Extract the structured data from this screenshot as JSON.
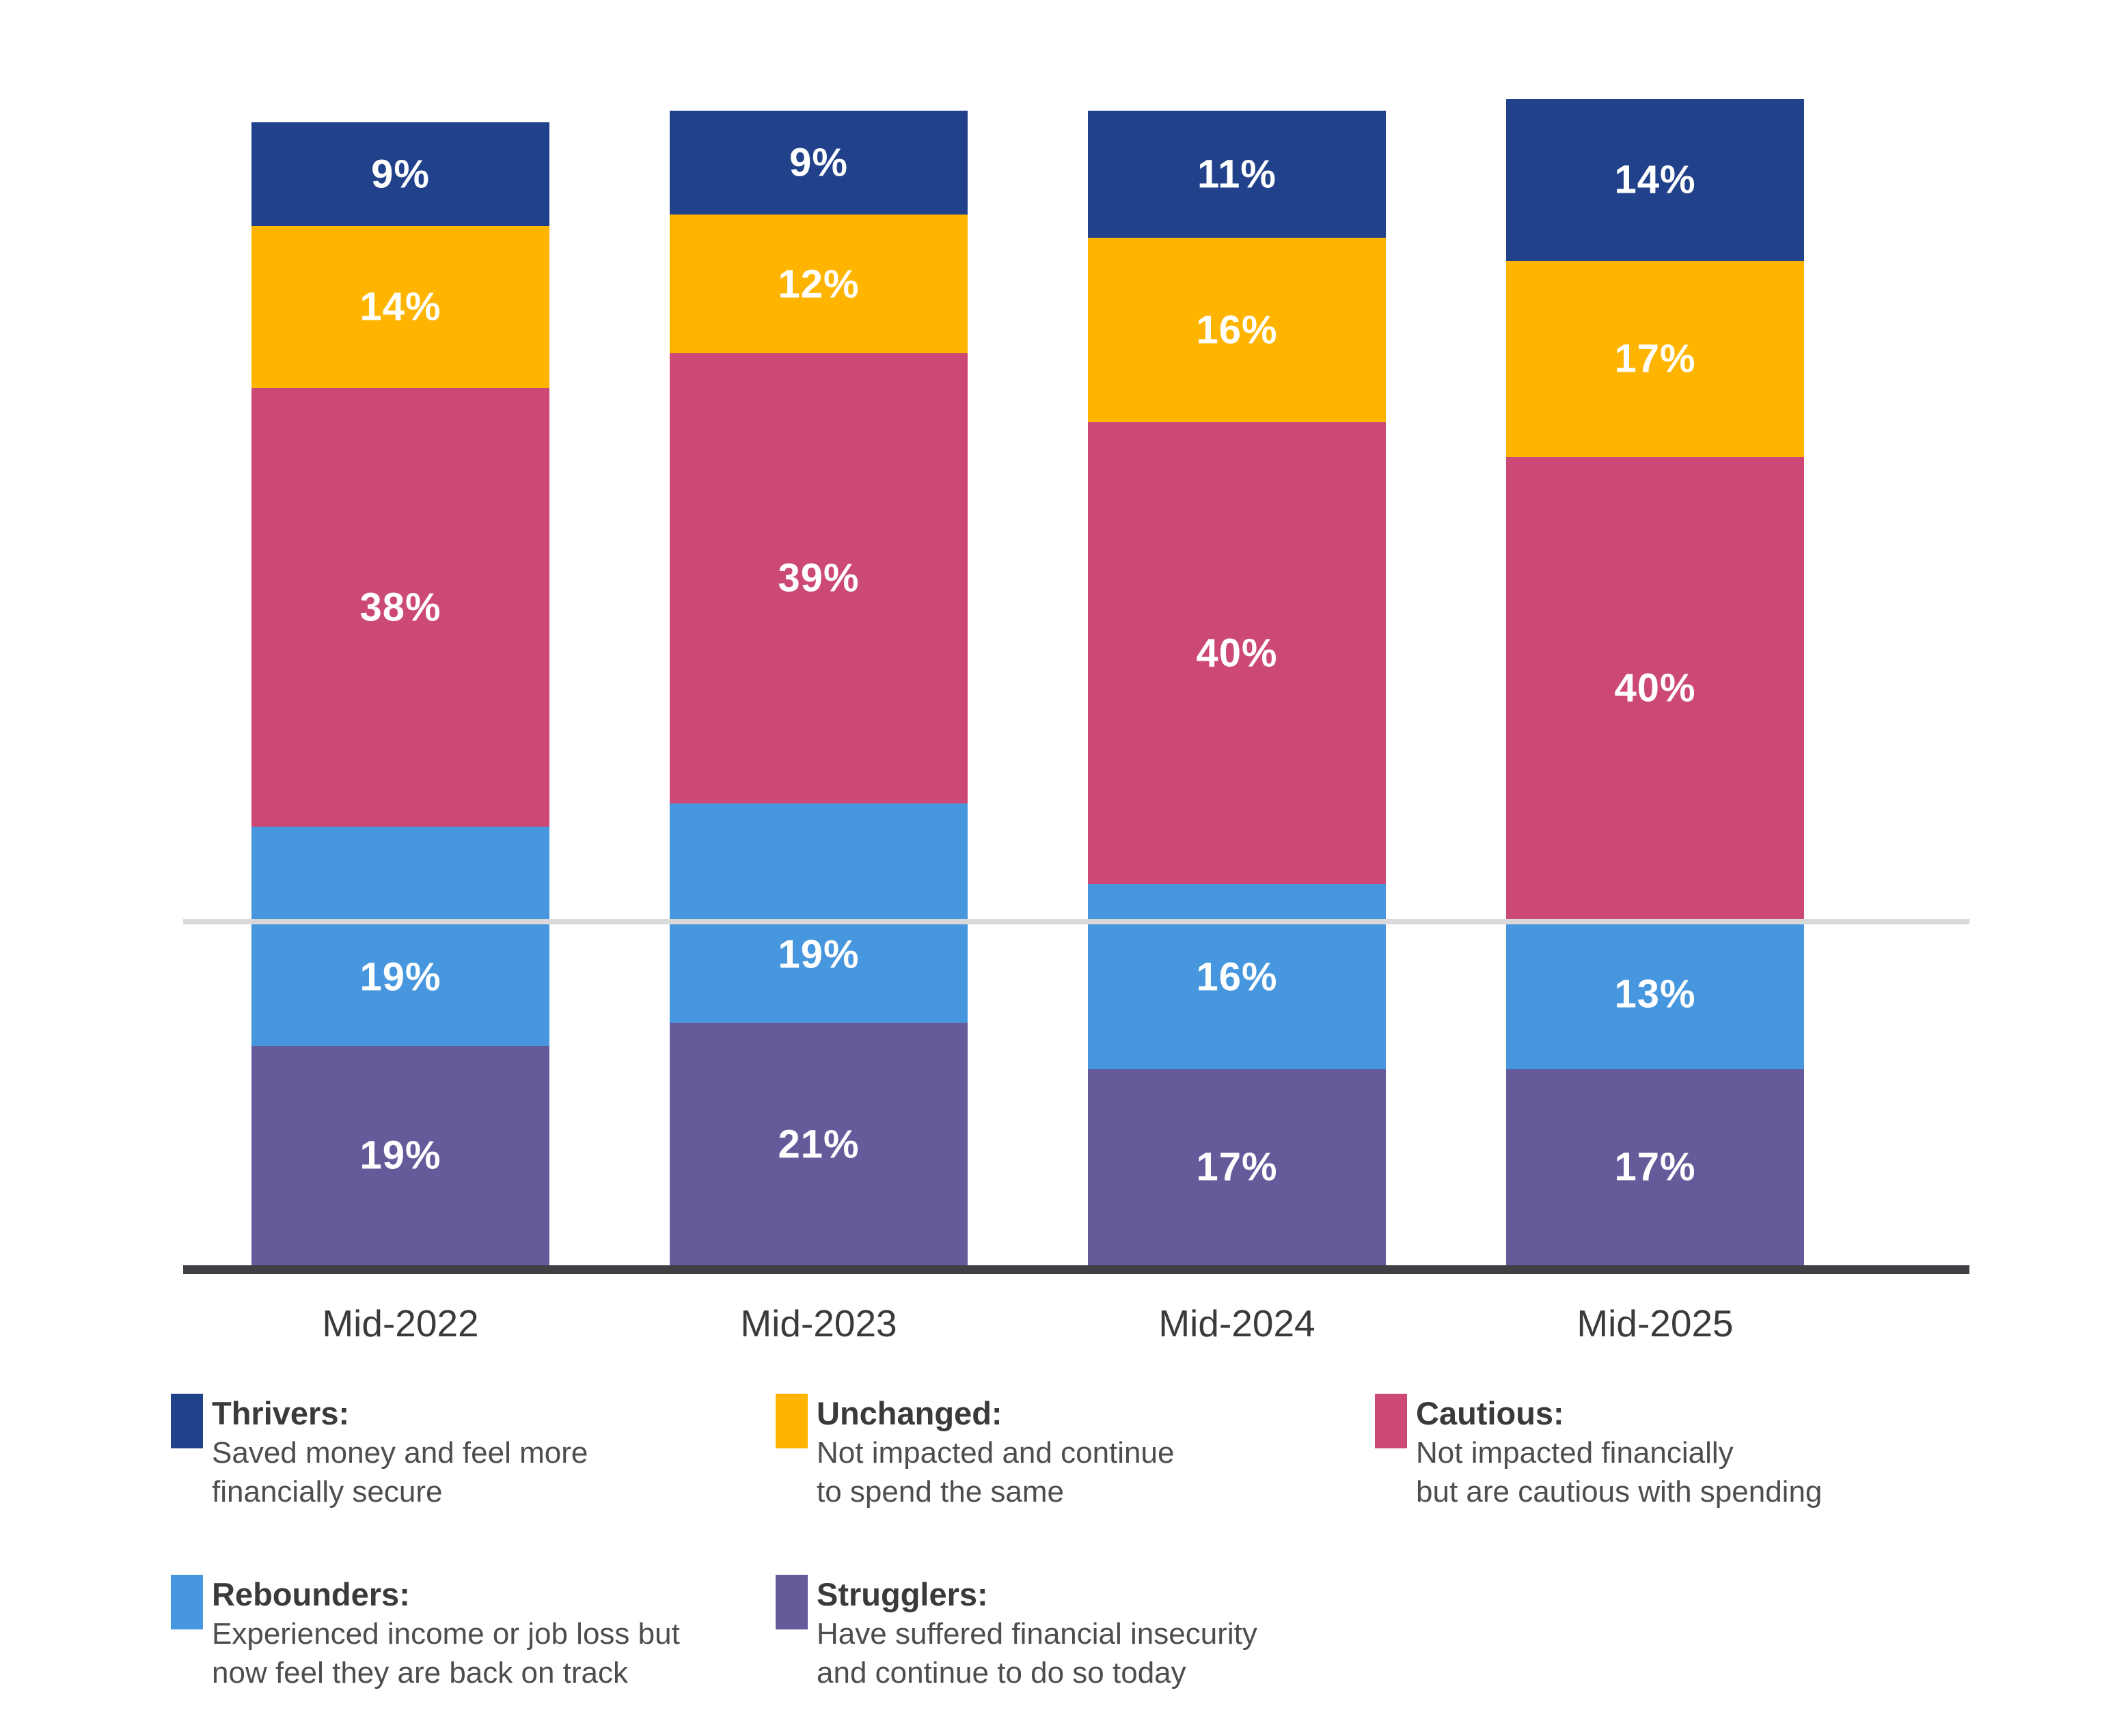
{
  "chart_data": {
    "type": "bar",
    "variant": "stacked-column-percent",
    "title": "",
    "categories": [
      "Mid-2022",
      "Mid-2023",
      "Mid-2024",
      "Mid-2025"
    ],
    "series": [
      {
        "name": "Thrivers",
        "color": "#21428B",
        "values": [
          9,
          9,
          11,
          14
        ]
      },
      {
        "name": "Unchanged",
        "color": "#FFB400",
        "values": [
          14,
          12,
          16,
          17
        ]
      },
      {
        "name": "Cautious",
        "color": "#CC4877",
        "values": [
          38,
          39,
          40,
          40
        ]
      },
      {
        "name": "Rebounders",
        "color": "#4697DE",
        "values": [
          19,
          19,
          16,
          13
        ]
      },
      {
        "name": "Strugglers",
        "color": "#675A9B",
        "values": [
          19,
          21,
          17,
          17
        ]
      }
    ],
    "stack_order_bottom_to_top": [
      "Strugglers",
      "Rebounders",
      "Cautious",
      "Unchanged",
      "Thrivers"
    ],
    "value_label_suffix": "%",
    "reference_line_value": 30,
    "ylim": [
      0,
      101
    ],
    "grid": "single-horizontal-reference-line",
    "legend_position": "bottom",
    "xlabel": "",
    "ylabel": ""
  },
  "legend": {
    "items": [
      {
        "name": "Thrivers:",
        "color": "#21428B",
        "description_lines": [
          "Saved money and feel more",
          "financially secure"
        ]
      },
      {
        "name": "Unchanged:",
        "color": "#FFB400",
        "description_lines": [
          "Not impacted and continue",
          "to spend the same"
        ]
      },
      {
        "name": "Cautious:",
        "color": "#CC4877",
        "description_lines": [
          "Not impacted financially",
          "but are cautious with spending"
        ]
      },
      {
        "name": "Rebounders:",
        "color": "#4697DE",
        "description_lines": [
          "Experienced income or job loss but",
          "now feel they are back on track"
        ]
      },
      {
        "name": "Strugglers:",
        "color": "#675A9B",
        "description_lines": [
          "Have suffered financial insecurity",
          "and continue to do so today"
        ]
      }
    ]
  },
  "colors": {
    "background": "#FFFFFF",
    "axis_line": "#3F3F44",
    "reference_line": "#D9D9D9",
    "bar_label_text": "#FFFFFF",
    "category_label_text": "#3A3A3A",
    "legend_title_text": "#3A3A3A",
    "legend_body_text": "#4D4D4D"
  }
}
